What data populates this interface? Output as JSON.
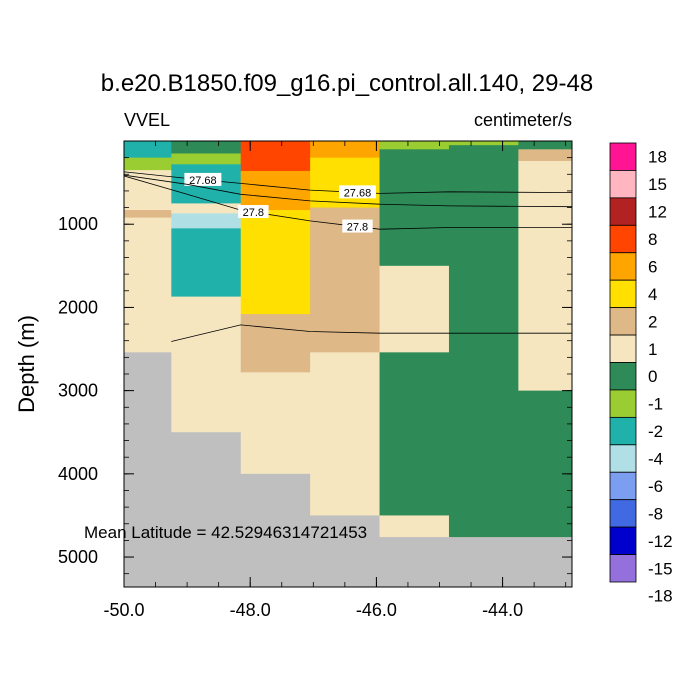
{
  "chart_data": {
    "type": "heatmap",
    "title": "b.e20.B1850.f09_g16.pi_control.all.140, 29-48",
    "left_label": "VVEL",
    "right_label": "centimeter/s",
    "xlabel": "",
    "ylabel": "Depth (m)",
    "xlim": [
      -50.0,
      -42.9
    ],
    "ylim": [
      5360,
      0
    ],
    "x_ticks": [
      -50.0,
      -48.0,
      -46.0,
      -44.0
    ],
    "x_tick_labels": [
      "-50.0",
      "-48.0",
      "-46.0",
      "-44.0"
    ],
    "y_ticks": [
      1000,
      2000,
      3000,
      4000,
      5000
    ],
    "y_tick_labels": [
      "1000",
      "2000",
      "3000",
      "4000",
      "5000"
    ],
    "annotation": "Mean Latitude = 42.52946314721453",
    "land_color": "#bfbfbf",
    "color_levels": [
      {
        "label": "18",
        "color": "#ff1493"
      },
      {
        "label": "15",
        "color": "#ffb6c1"
      },
      {
        "label": "12",
        "color": "#b22222"
      },
      {
        "label": "8",
        "color": "#ff4500"
      },
      {
        "label": "6",
        "color": "#ffa500"
      },
      {
        "label": "4",
        "color": "#ffe000"
      },
      {
        "label": "2",
        "color": "#deb887"
      },
      {
        "label": "1",
        "color": "#f5e6c0"
      },
      {
        "label": "0",
        "color": "#2e8b57"
      },
      {
        "label": "-1",
        "color": "#9acd32"
      },
      {
        "label": "-2",
        "color": "#20b2aa"
      },
      {
        "label": "-4",
        "color": "#b0e0e6"
      },
      {
        "label": "-6",
        "color": "#7b9ef0"
      },
      {
        "label": "-8",
        "color": "#4169e1"
      },
      {
        "label": "-12",
        "color": "#0000cd"
      },
      {
        "label": "-15",
        "color": "#9370db"
      },
      {
        "label": "-18",
        "color": ""
      }
    ],
    "cells": [
      {
        "x0": -50.0,
        "x1": -49.25,
        "y0": 0,
        "y1": 200,
        "c": "#20b2aa"
      },
      {
        "x0": -50.0,
        "x1": -49.25,
        "y0": 200,
        "y1": 350,
        "c": "#9acd32"
      },
      {
        "x0": -50.0,
        "x1": -49.25,
        "y0": 350,
        "y1": 830,
        "c": "#f5e6c0"
      },
      {
        "x0": -50.0,
        "x1": -49.25,
        "y0": 830,
        "y1": 920,
        "c": "#deb887"
      },
      {
        "x0": -50.0,
        "x1": -49.25,
        "y0": 920,
        "y1": 2540,
        "c": "#f5e6c0"
      },
      {
        "x0": -50.0,
        "x1": -49.25,
        "y0": 2540,
        "y1": 5360,
        "c": "#bfbfbf"
      },
      {
        "x0": -49.25,
        "x1": -48.15,
        "y0": 0,
        "y1": 150,
        "c": "#2e8b57"
      },
      {
        "x0": -49.25,
        "x1": -48.15,
        "y0": 150,
        "y1": 280,
        "c": "#9acd32"
      },
      {
        "x0": -49.25,
        "x1": -48.15,
        "y0": 280,
        "y1": 750,
        "c": "#20b2aa"
      },
      {
        "x0": -49.25,
        "x1": -48.15,
        "y0": 750,
        "y1": 870,
        "c": "#f5e6c0"
      },
      {
        "x0": -49.25,
        "x1": -48.15,
        "y0": 870,
        "y1": 1050,
        "c": "#b0e0e6"
      },
      {
        "x0": -49.25,
        "x1": -48.15,
        "y0": 1050,
        "y1": 1870,
        "c": "#20b2aa"
      },
      {
        "x0": -49.25,
        "x1": -48.15,
        "y0": 1870,
        "y1": 3500,
        "c": "#f5e6c0"
      },
      {
        "x0": -49.25,
        "x1": -48.15,
        "y0": 3500,
        "y1": 5360,
        "c": "#bfbfbf"
      },
      {
        "x0": -48.15,
        "x1": -47.05,
        "y0": 0,
        "y1": 360,
        "c": "#ff4500"
      },
      {
        "x0": -48.15,
        "x1": -47.05,
        "y0": 360,
        "y1": 830,
        "c": "#ffa500"
      },
      {
        "x0": -48.15,
        "x1": -47.05,
        "y0": 830,
        "y1": 2080,
        "c": "#ffe000"
      },
      {
        "x0": -48.15,
        "x1": -47.05,
        "y0": 2080,
        "y1": 2780,
        "c": "#deb887"
      },
      {
        "x0": -48.15,
        "x1": -47.05,
        "y0": 2780,
        "y1": 4000,
        "c": "#f5e6c0"
      },
      {
        "x0": -48.15,
        "x1": -47.05,
        "y0": 4000,
        "y1": 5360,
        "c": "#bfbfbf"
      },
      {
        "x0": -47.05,
        "x1": -45.95,
        "y0": 0,
        "y1": 200,
        "c": "#ffa500"
      },
      {
        "x0": -47.05,
        "x1": -45.95,
        "y0": 200,
        "y1": 800,
        "c": "#ffe000"
      },
      {
        "x0": -47.05,
        "x1": -45.95,
        "y0": 800,
        "y1": 2540,
        "c": "#deb887"
      },
      {
        "x0": -47.05,
        "x1": -45.95,
        "y0": 2540,
        "y1": 4500,
        "c": "#f5e6c0"
      },
      {
        "x0": -47.05,
        "x1": -45.95,
        "y0": 4500,
        "y1": 5360,
        "c": "#bfbfbf"
      },
      {
        "x0": -45.95,
        "x1": -44.85,
        "y0": 0,
        "y1": 100,
        "c": "#9acd32"
      },
      {
        "x0": -45.95,
        "x1": -44.85,
        "y0": 100,
        "y1": 1500,
        "c": "#2e8b57"
      },
      {
        "x0": -45.95,
        "x1": -44.85,
        "y0": 1500,
        "y1": 2540,
        "c": "#f5e6c0"
      },
      {
        "x0": -45.95,
        "x1": -44.85,
        "y0": 2540,
        "y1": 4500,
        "c": "#2e8b57"
      },
      {
        "x0": -45.95,
        "x1": -44.85,
        "y0": 4500,
        "y1": 4760,
        "c": "#f5e6c0"
      },
      {
        "x0": -45.95,
        "x1": -44.85,
        "y0": 4760,
        "y1": 5360,
        "c": "#bfbfbf"
      },
      {
        "x0": -44.85,
        "x1": -43.75,
        "y0": 0,
        "y1": 50,
        "c": "#9acd32"
      },
      {
        "x0": -44.85,
        "x1": -43.75,
        "y0": 50,
        "y1": 4760,
        "c": "#2e8b57"
      },
      {
        "x0": -44.85,
        "x1": -43.75,
        "y0": 4760,
        "y1": 5360,
        "c": "#bfbfbf"
      },
      {
        "x0": -43.75,
        "x1": -42.9,
        "y0": 0,
        "y1": 100,
        "c": "#2e8b57"
      },
      {
        "x0": -43.75,
        "x1": -42.9,
        "y0": 100,
        "y1": 240,
        "c": "#deb887"
      },
      {
        "x0": -43.75,
        "x1": -42.9,
        "y0": 240,
        "y1": 3000,
        "c": "#f5e6c0"
      },
      {
        "x0": -43.75,
        "x1": -42.9,
        "y0": 3000,
        "y1": 4760,
        "c": "#2e8b57"
      },
      {
        "x0": -43.75,
        "x1": -42.9,
        "y0": 4760,
        "y1": 5360,
        "c": "#bfbfbf"
      }
    ],
    "contours": [
      {
        "label": "27.68",
        "label_at": [
          -48.75,
          -46.3
        ],
        "points": [
          [
            -50.0,
            370
          ],
          [
            -49.0,
            450
          ],
          [
            -48.15,
            510
          ],
          [
            -47.05,
            590
          ],
          [
            -45.95,
            630
          ],
          [
            -44.85,
            610
          ],
          [
            -42.9,
            620
          ]
        ]
      },
      {
        "label": "27.8",
        "label_at": [
          -47.95,
          -46.3
        ],
        "points": [
          [
            -50.0,
            420
          ],
          [
            -49.0,
            640
          ],
          [
            -48.15,
            830
          ],
          [
            -47.05,
            960
          ],
          [
            -45.95,
            1060
          ],
          [
            -44.85,
            1040
          ],
          [
            -42.9,
            1040
          ]
        ]
      },
      {
        "label": "",
        "label_at": [],
        "points": [
          [
            -50.0,
            410
          ],
          [
            -49.0,
            520
          ],
          [
            -48.15,
            640
          ],
          [
            -47.05,
            720
          ],
          [
            -45.95,
            760
          ],
          [
            -44.85,
            780
          ],
          [
            -42.9,
            790
          ]
        ]
      },
      {
        "label": "",
        "label_at": [],
        "points": [
          [
            -49.25,
            2410
          ],
          [
            -48.15,
            2210
          ],
          [
            -47.05,
            2290
          ],
          [
            -45.95,
            2310
          ],
          [
            -44.85,
            2310
          ],
          [
            -42.9,
            2310
          ]
        ]
      }
    ]
  }
}
